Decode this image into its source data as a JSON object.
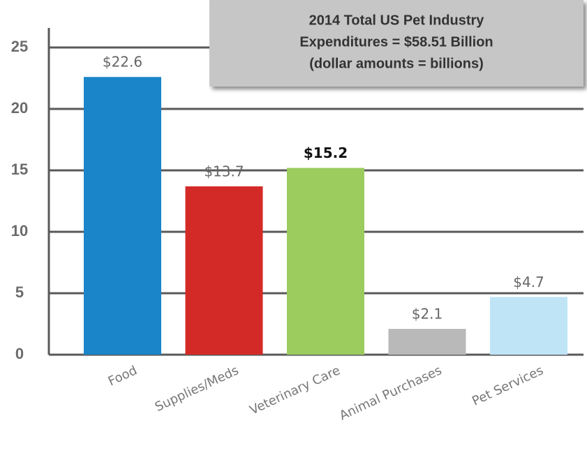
{
  "chart_data": {
    "type": "bar",
    "annotation": [
      "2014 Total US Pet Industry",
      "Expenditures = $58.51 Billion",
      "(dollar amounts = billions)"
    ],
    "categories": [
      "Food",
      "Supplies/Meds",
      "Veterinary Care",
      "Animal Purchases",
      "Pet Services"
    ],
    "values": [
      22.6,
      13.7,
      15.2,
      2.1,
      4.7
    ],
    "value_labels": [
      "$22.6",
      "$13.7",
      "$15.2",
      "$2.1",
      "$4.7"
    ],
    "colors": [
      "#1a85c8",
      "#d42a27",
      "#9ccb5e",
      "#b9b9b9",
      "#bee4f6"
    ],
    "ylim": [
      0,
      25
    ],
    "yticks": [
      0,
      5,
      10,
      15,
      20,
      25
    ],
    "grid": true
  }
}
